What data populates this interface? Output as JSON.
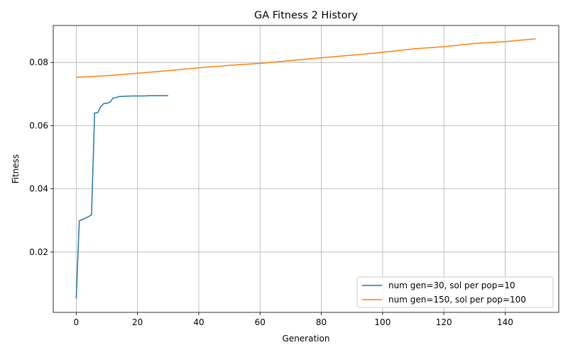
{
  "chart_data": {
    "type": "line",
    "title": "GA Fitness 2 History",
    "xlabel": "Generation",
    "ylabel": "Fitness",
    "xlim": [
      -7.5,
      157.5
    ],
    "ylim": [
      0.0009,
      0.0917
    ],
    "xticks": [
      0,
      20,
      40,
      60,
      80,
      100,
      120,
      140
    ],
    "yticks": [
      0.02,
      0.04,
      0.06,
      0.08
    ],
    "xtick_labels": [
      "0",
      "20",
      "40",
      "60",
      "80",
      "100",
      "120",
      "140"
    ],
    "ytick_labels": [
      "0.02",
      "0.04",
      "0.06",
      "0.08"
    ],
    "grid": true,
    "legend_position": "lower-right",
    "series": [
      {
        "name": "num gen=30, sol per pop=10",
        "color": "#1f77b4",
        "x": [
          0,
          1,
          2,
          3,
          4,
          5,
          6,
          7,
          8,
          9,
          10,
          11,
          12,
          13,
          14,
          16,
          18,
          20,
          22,
          24,
          26,
          28,
          30
        ],
        "y": [
          0.0053,
          0.0299,
          0.0303,
          0.0307,
          0.0312,
          0.0318,
          0.064,
          0.0641,
          0.066,
          0.067,
          0.0671,
          0.0674,
          0.0687,
          0.0689,
          0.0692,
          0.0693,
          0.0694,
          0.0694,
          0.0694,
          0.0695,
          0.0695,
          0.0695,
          0.0695
        ]
      },
      {
        "name": "num gen=150, sol per pop=100",
        "color": "#ff7f0e",
        "x": [
          0,
          10,
          20,
          30,
          40,
          50,
          60,
          70,
          80,
          90,
          100,
          110,
          120,
          130,
          140,
          150
        ],
        "y": [
          0.0753,
          0.0758,
          0.0766,
          0.0774,
          0.0783,
          0.0791,
          0.0797,
          0.0806,
          0.0815,
          0.0823,
          0.0832,
          0.0843,
          0.085,
          0.086,
          0.0866,
          0.0875
        ]
      }
    ]
  }
}
